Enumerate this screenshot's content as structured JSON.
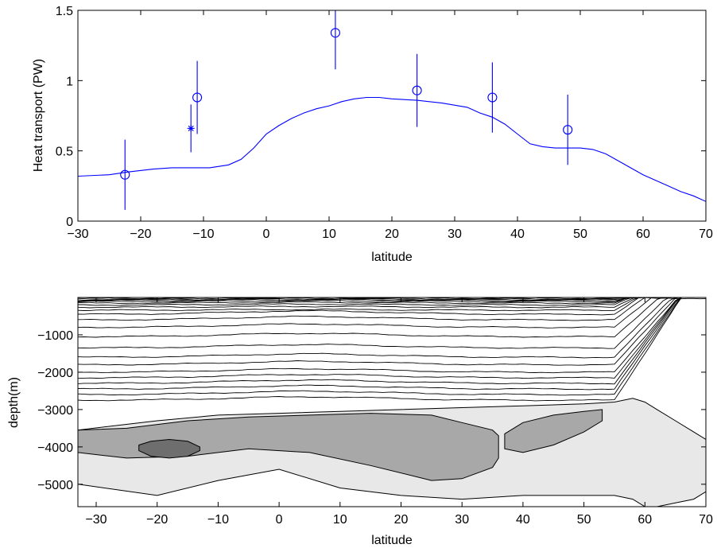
{
  "chart_data": [
    {
      "type": "line",
      "title": "",
      "xlabel": "latitude",
      "ylabel": "Heat transport (PW)",
      "xlim": [
        -30,
        70
      ],
      "ylim": [
        0,
        1.5
      ],
      "xticks": [
        -30,
        -20,
        -10,
        0,
        10,
        20,
        30,
        40,
        50,
        60,
        70
      ],
      "yticks": [
        0,
        0.5,
        1,
        1.5
      ],
      "ytick_labels": [
        "0",
        "0.5",
        "1",
        "1.5"
      ],
      "grid": false,
      "legend": "none",
      "colors": {
        "line": "#0000ff",
        "markers": "#0000ff"
      },
      "series": [
        {
          "type": "line",
          "x": [
            -30,
            -25,
            -22,
            -18,
            -15,
            -12,
            -9,
            -6,
            -4,
            -2,
            0,
            2,
            4,
            6,
            8,
            10,
            12,
            14,
            16,
            18,
            20,
            24,
            28,
            32,
            34,
            36,
            38,
            40,
            42,
            44,
            46,
            48,
            50,
            52,
            54,
            56,
            58,
            60,
            62,
            64,
            66,
            68,
            70
          ],
          "y": [
            0.32,
            0.33,
            0.35,
            0.37,
            0.38,
            0.38,
            0.38,
            0.4,
            0.44,
            0.52,
            0.62,
            0.68,
            0.73,
            0.77,
            0.8,
            0.82,
            0.85,
            0.87,
            0.88,
            0.88,
            0.87,
            0.86,
            0.84,
            0.81,
            0.77,
            0.74,
            0.69,
            0.62,
            0.55,
            0.53,
            0.52,
            0.52,
            0.52,
            0.51,
            0.48,
            0.43,
            0.38,
            0.33,
            0.29,
            0.25,
            0.21,
            0.18,
            0.14
          ]
        },
        {
          "type": "errorbar",
          "marker": "circle",
          "x": [
            -22.5,
            -11,
            11,
            24,
            36,
            48
          ],
          "y": [
            0.33,
            0.88,
            1.34,
            0.93,
            0.88,
            0.65
          ],
          "yerr": [
            0.25,
            0.26,
            0.26,
            0.26,
            0.25,
            0.25
          ]
        },
        {
          "type": "errorbar",
          "marker": "asterisk",
          "x": [
            -12
          ],
          "y": [
            0.66
          ],
          "yerr": [
            0.17
          ]
        }
      ]
    },
    {
      "type": "contour",
      "title": "",
      "xlabel": "latitude",
      "ylabel": "depth(m)",
      "xlim": [
        -33,
        70
      ],
      "ylim": [
        -5600,
        0
      ],
      "xticks": [
        -30,
        -20,
        -10,
        0,
        10,
        20,
        30,
        40,
        50,
        60,
        70
      ],
      "yticks": [
        -1000,
        -2000,
        -3000,
        -4000,
        -5000
      ],
      "ytick_labels": [
        "−1000",
        "−2000",
        "−3000",
        "−4000",
        "−5000"
      ],
      "grid": false,
      "legend": "none",
      "colors": {
        "light_fill": "#e8e8e8",
        "mid_fill": "#a8a8a8",
        "dark_fill": "#6e6e6e",
        "contour_line": "#000000"
      },
      "contour_depths": [
        -20,
        -40,
        -60,
        -80,
        -110,
        -150,
        -200,
        -260,
        -340,
        -450,
        -600,
        -800,
        -1050,
        -1350,
        -1600,
        -1800,
        -2000,
        -2150,
        -2300,
        -2450,
        -2600,
        -2750
      ],
      "regions": {
        "light": {
          "x": [
            -33,
            -20,
            -10,
            0,
            10,
            20,
            30,
            40,
            50,
            55,
            58,
            60,
            62,
            65,
            68,
            70
          ],
          "upper": [
            -3550,
            -3300,
            -3150,
            -3100,
            -3050,
            -3000,
            -2950,
            -2900,
            -2850,
            -2800,
            -2700,
            -2800,
            -3000,
            -3300,
            -3600,
            -3800
          ],
          "lower": [
            -5000,
            -5300,
            -4900,
            -4600,
            -5100,
            -5300,
            -5400,
            -5300,
            -5300,
            -5300,
            -5400,
            -5600,
            -5600,
            -5500,
            -5400,
            -5200
          ]
        },
        "mid": [
          {
            "x": [
              -33,
              -25,
              -15,
              -5,
              5,
              15,
              25,
              30,
              35,
              36
            ],
            "upper": [
              -3550,
              -3500,
              -3300,
              -3200,
              -3150,
              -3100,
              -3150,
              -3350,
              -3550,
              -3700
            ],
            "lower": [
              -4150,
              -4300,
              -4250,
              -4050,
              -4150,
              -4500,
              -4900,
              -4850,
              -4550,
              -4300
            ]
          },
          {
            "x": [
              37,
              40,
              45,
              50,
              53
            ],
            "upper": [
              -3650,
              -3350,
              -3150,
              -3050,
              -3000
            ],
            "lower": [
              -4050,
              -4150,
              -3950,
              -3600,
              -3300
            ]
          }
        ],
        "dark": {
          "x": [
            -23,
            -21,
            -18,
            -15,
            -13
          ],
          "upper": [
            -3950,
            -3850,
            -3800,
            -3850,
            -4000
          ],
          "lower": [
            -4100,
            -4250,
            -4300,
            -4250,
            -4100
          ]
        }
      }
    }
  ]
}
